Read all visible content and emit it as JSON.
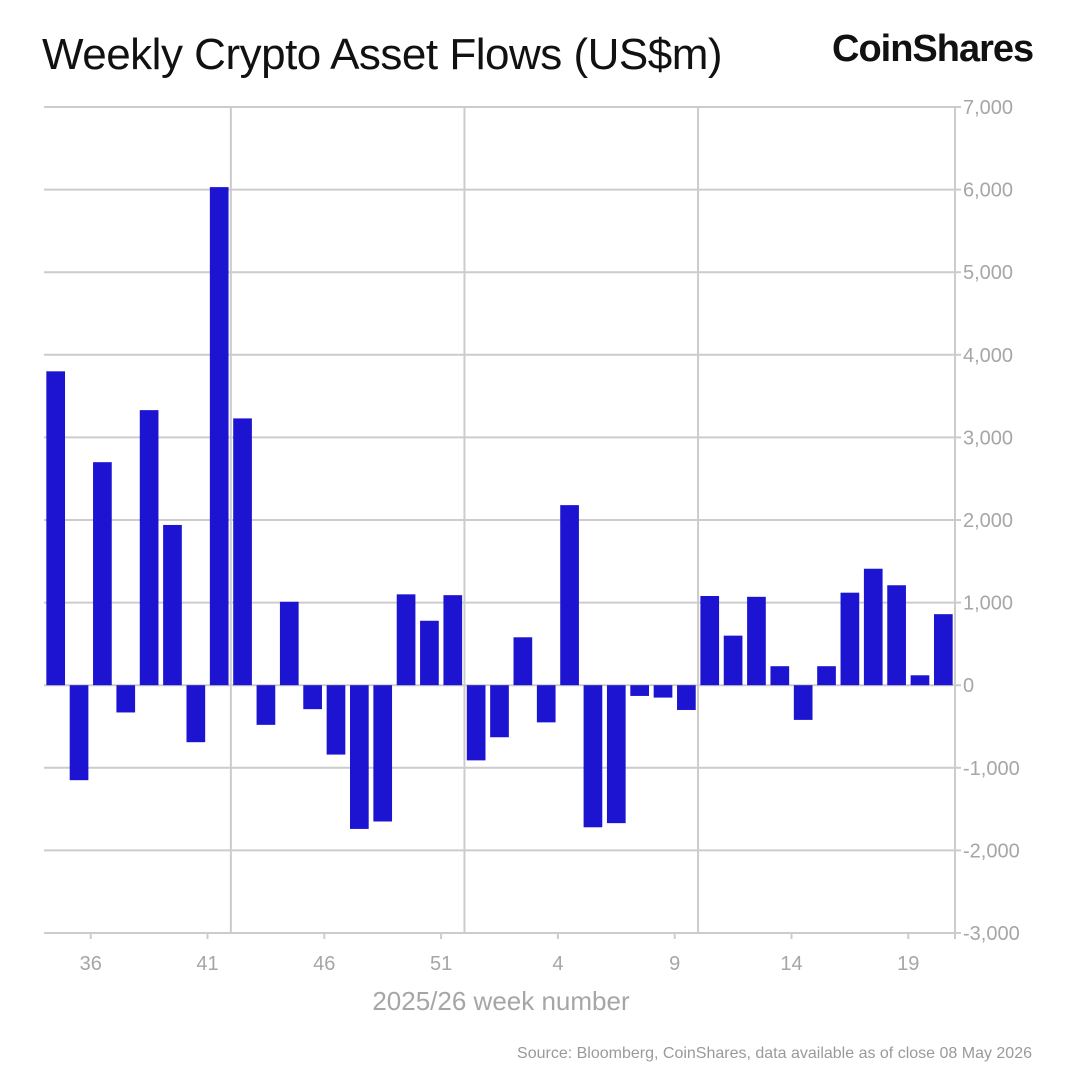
{
  "header": {
    "title": "Weekly Crypto Asset Flows (US$m)",
    "brand": "CoinShares"
  },
  "footer": {
    "source": "Source: Bloomberg, CoinShares, data available as of close 08 May 2026"
  },
  "colors": {
    "bar": "#1c14d0",
    "grid": "#cccccc",
    "tick_text": "#a6a6a6"
  },
  "chart_data": {
    "type": "bar",
    "title": "Weekly Crypto Asset Flows (US$m)",
    "xlabel": "2025/26 week number",
    "ylabel": "",
    "ylim": [
      -3000,
      7000
    ],
    "y_ticks": [
      -3000,
      -2000,
      -1000,
      0,
      1000,
      2000,
      3000,
      4000,
      5000,
      6000,
      7000
    ],
    "y_tick_labels": [
      "-3,000",
      "-2,000",
      "-1,000",
      "0",
      "1,000",
      "2,000",
      "3,000",
      "4,000",
      "5,000",
      "6,000",
      "7,000"
    ],
    "x_tick_labels": [
      {
        "label": "36",
        "after": 2
      },
      {
        "label": "41",
        "after": 7
      },
      {
        "label": "46",
        "after": 12
      },
      {
        "label": "51",
        "after": 17
      },
      {
        "label": "4",
        "after": 22
      },
      {
        "label": "9",
        "after": 27
      },
      {
        "label": "14",
        "after": 32
      },
      {
        "label": "19",
        "after": 37
      }
    ],
    "x_grid_after": [
      8,
      18,
      28
    ],
    "grid": true,
    "legend": "none",
    "values": [
      3800,
      -1150,
      2700,
      -330,
      3330,
      1940,
      -690,
      6030,
      3230,
      -480,
      1010,
      -290,
      -840,
      -1740,
      -1650,
      1100,
      780,
      1090,
      -910,
      -630,
      580,
      -450,
      2180,
      -1720,
      -1670,
      -130,
      -150,
      -300,
      1080,
      600,
      1070,
      230,
      -420,
      230,
      1120,
      1410,
      1210,
      120,
      860
    ]
  }
}
